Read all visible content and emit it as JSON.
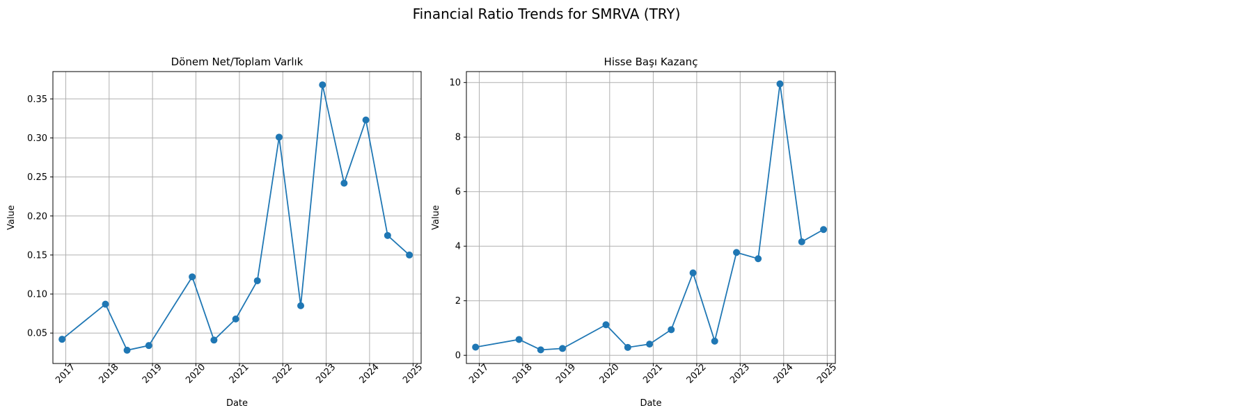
{
  "figure": {
    "title": "Financial Ratio Trends for SMRVA (TRY)"
  },
  "chart_data": [
    {
      "type": "line",
      "title": "Dönem Net/Toplam Varlık",
      "xlabel": "Date",
      "ylabel": "Value",
      "xlim": [
        "2016-09-15",
        "2025-03-10"
      ],
      "ylim": [
        0.011,
        0.385
      ],
      "x_ticks": [
        "2017",
        "2018",
        "2019",
        "2020",
        "2021",
        "2022",
        "2023",
        "2024",
        "2025"
      ],
      "y_ticks": [
        0.05,
        0.1,
        0.15,
        0.2,
        0.25,
        0.3,
        0.35
      ],
      "y_tick_labels": [
        "0.05",
        "0.10",
        "0.15",
        "0.20",
        "0.25",
        "0.30",
        "0.35"
      ],
      "grid": true,
      "color": "#1f77b4",
      "marker": "circle",
      "x": [
        "2016-12-01",
        "2017-12-01",
        "2018-06-01",
        "2018-12-01",
        "2019-12-01",
        "2020-06-01",
        "2020-12-01",
        "2021-06-01",
        "2021-12-01",
        "2022-06-01",
        "2022-12-01",
        "2023-06-01",
        "2023-12-01",
        "2024-06-01",
        "2024-12-01"
      ],
      "values": [
        0.042,
        0.087,
        0.028,
        0.034,
        0.122,
        0.041,
        0.068,
        0.117,
        0.301,
        0.085,
        0.368,
        0.242,
        0.323,
        0.175,
        0.15
      ]
    },
    {
      "type": "line",
      "title": "Hisse Başı Kazanç",
      "xlabel": "Date",
      "ylabel": "Value",
      "xlim": [
        "2016-09-15",
        "2025-03-10"
      ],
      "ylim": [
        -0.3,
        10.4
      ],
      "x_ticks": [
        "2017",
        "2018",
        "2019",
        "2020",
        "2021",
        "2022",
        "2023",
        "2024",
        "2025"
      ],
      "y_ticks": [
        0,
        2,
        4,
        6,
        8,
        10
      ],
      "y_tick_labels": [
        "0",
        "2",
        "4",
        "6",
        "8",
        "10"
      ],
      "grid": true,
      "color": "#1f77b4",
      "marker": "circle",
      "x": [
        "2016-12-01",
        "2017-12-01",
        "2018-06-01",
        "2018-12-01",
        "2019-12-01",
        "2020-06-01",
        "2020-12-01",
        "2021-06-01",
        "2021-12-01",
        "2022-06-01",
        "2022-12-01",
        "2023-06-01",
        "2023-12-01",
        "2024-06-01",
        "2024-12-01"
      ],
      "values": [
        0.3,
        0.58,
        0.2,
        0.25,
        1.12,
        0.29,
        0.41,
        0.94,
        3.02,
        0.52,
        3.77,
        3.54,
        9.95,
        4.16,
        4.61
      ]
    }
  ]
}
